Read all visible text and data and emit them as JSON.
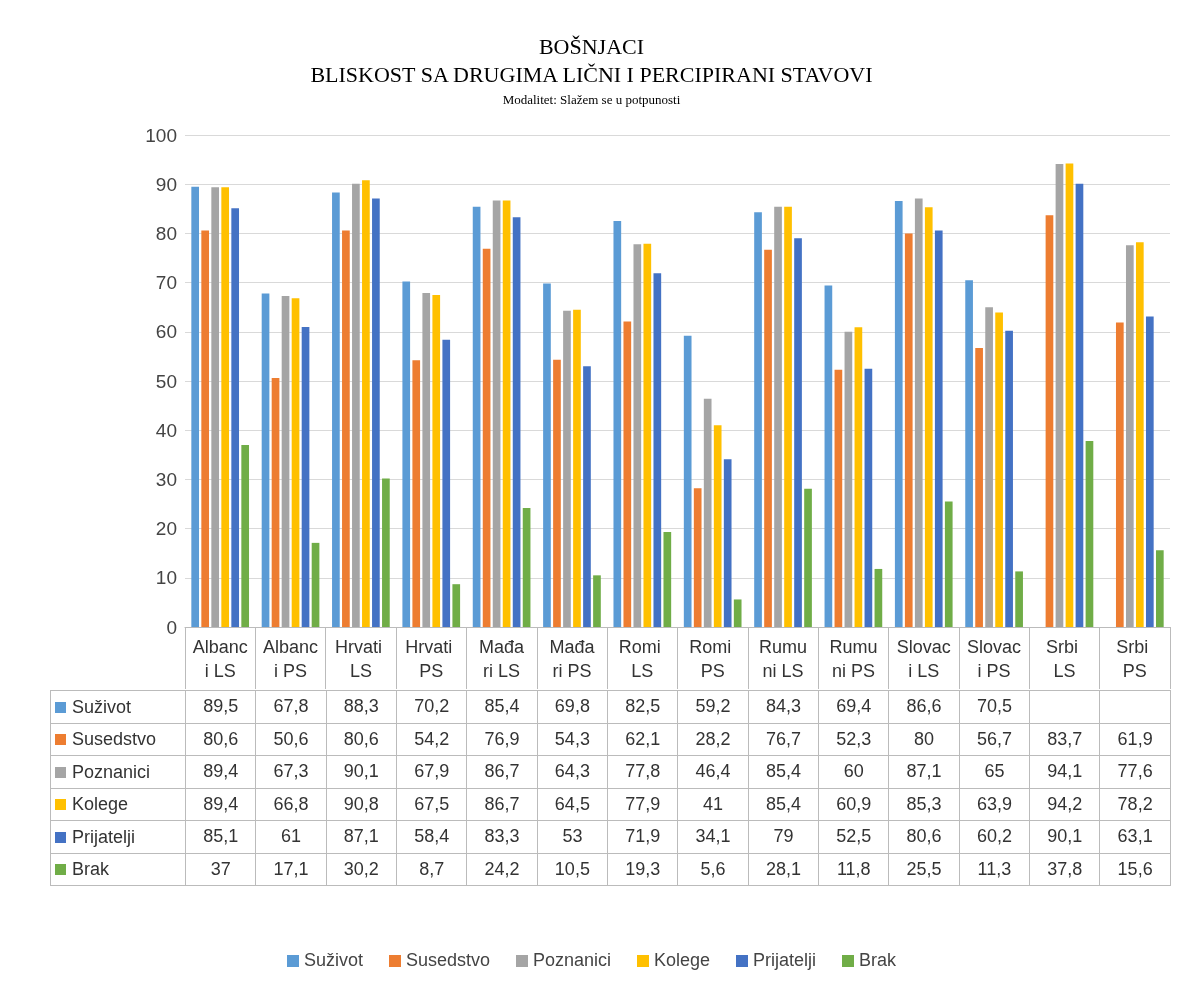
{
  "chart_data": {
    "type": "bar",
    "title": "BOŠNJACI",
    "subtitle": "BLISKOST SA DRUGIMA LIČNI I PERCIPIRANI STAVOVI",
    "annotations": [
      "Modalitet: Slažem se u potpunosti"
    ],
    "categories": [
      "Albanci LS",
      "Albanci PS",
      "Hrvati LS",
      "Hrvati PS",
      "Mađari LS",
      "Mađari PS",
      "Romi LS",
      "Romi PS",
      "Rumuni LS",
      "Rumuni PS",
      "Slovaci LS",
      "Slovaci PS",
      "Srbi LS",
      "Srbi PS"
    ],
    "series": [
      {
        "name": "Suživot",
        "color": "#5b9bd5",
        "values": [
          89.5,
          67.8,
          88.3,
          70.2,
          85.4,
          69.8,
          82.5,
          59.2,
          84.3,
          69.4,
          86.6,
          70.5,
          null,
          null
        ],
        "value_labels": [
          "89,5",
          "67,8",
          "88,3",
          "70,2",
          "85,4",
          "69,8",
          "82,5",
          "59,2",
          "84,3",
          "69,4",
          "86,6",
          "70,5",
          null,
          null
        ]
      },
      {
        "name": "Susedstvo",
        "color": "#ed7d31",
        "values": [
          80.6,
          50.6,
          80.6,
          54.2,
          76.9,
          54.3,
          62.1,
          28.2,
          76.7,
          52.3,
          80,
          56.7,
          83.7,
          61.9
        ],
        "value_labels": [
          "80,6",
          "50,6",
          "80,6",
          "54,2",
          "76,9",
          "54,3",
          "62,1",
          "28,2",
          "76,7",
          "52,3",
          "80",
          "56,7",
          "83,7",
          "61,9"
        ]
      },
      {
        "name": "Poznanici",
        "color": "#a5a5a5",
        "values": [
          89.4,
          67.3,
          90.1,
          67.9,
          86.7,
          64.3,
          77.8,
          46.4,
          85.4,
          60,
          87.1,
          65,
          94.1,
          77.6
        ],
        "value_labels": [
          "89,4",
          "67,3",
          "90,1",
          "67,9",
          "86,7",
          "64,3",
          "77,8",
          "46,4",
          "85,4",
          "60",
          "87,1",
          "65",
          "94,1",
          "77,6"
        ]
      },
      {
        "name": "Kolege",
        "color": "#ffc000",
        "values": [
          89.4,
          66.8,
          90.8,
          67.5,
          86.7,
          64.5,
          77.9,
          41,
          85.4,
          60.9,
          85.3,
          63.9,
          94.2,
          78.2
        ],
        "value_labels": [
          "89,4",
          "66,8",
          "90,8",
          "67,5",
          "86,7",
          "64,5",
          "77,9",
          "41",
          "85,4",
          "60,9",
          "85,3",
          "63,9",
          "94,2",
          "78,2"
        ]
      },
      {
        "name": "Prijatelji",
        "color": "#4472c4",
        "values": [
          85.1,
          61,
          87.1,
          58.4,
          83.3,
          53,
          71.9,
          34.1,
          79,
          52.5,
          80.6,
          60.2,
          90.1,
          63.1
        ],
        "value_labels": [
          "85,1",
          "61",
          "87,1",
          "58,4",
          "83,3",
          "53",
          "71,9",
          "34,1",
          "79",
          "52,5",
          "80,6",
          "60,2",
          "90,1",
          "63,1"
        ]
      },
      {
        "name": "Brak",
        "color": "#70ad47",
        "values": [
          37,
          17.1,
          30.2,
          8.7,
          24.2,
          10.5,
          19.3,
          5.6,
          28.1,
          11.8,
          25.5,
          11.3,
          37.8,
          15.6
        ],
        "value_labels": [
          "37",
          "17,1",
          "30,2",
          "8,7",
          "24,2",
          "10,5",
          "19,3",
          "5,6",
          "28,1",
          "11,8",
          "25,5",
          "11,3",
          "37,8",
          "15,6"
        ]
      }
    ],
    "ylim": [
      0,
      100
    ],
    "yticks": [
      0,
      10,
      20,
      30,
      40,
      50,
      60,
      70,
      80,
      90,
      100
    ],
    "grid": "y",
    "legend": "bottom"
  }
}
